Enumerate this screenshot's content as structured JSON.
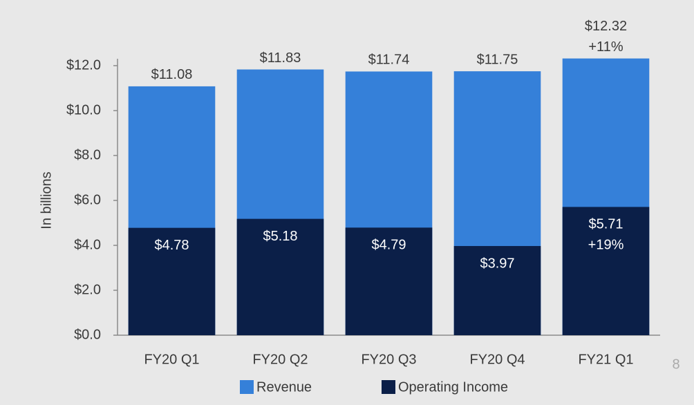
{
  "chart_data": {
    "type": "bar",
    "overlap": true,
    "y_label": "In billions",
    "categories": [
      "FY20 Q1",
      "FY20 Q2",
      "FY20 Q3",
      "FY20 Q4",
      "FY21 Q1"
    ],
    "series": [
      {
        "name": "Revenue",
        "color": "#3580d9",
        "values": [
          11.08,
          11.83,
          11.74,
          11.75,
          12.32
        ],
        "value_labels": [
          "$11.08",
          "$11.83",
          "$11.74",
          "$11.75",
          "$12.32"
        ],
        "growth_labels": [
          null,
          null,
          null,
          null,
          "+11%"
        ]
      },
      {
        "name": "Operating Income",
        "color": "#0b1f48",
        "values": [
          4.78,
          5.18,
          4.79,
          3.97,
          5.71
        ],
        "value_labels": [
          "$4.78",
          "$5.18",
          "$4.79",
          "$3.97",
          "$5.71"
        ],
        "growth_labels": [
          null,
          null,
          null,
          null,
          "+19%"
        ]
      }
    ],
    "ylim": [
      0,
      12
    ],
    "yticks": [
      {
        "value": 0,
        "label": "$0.0"
      },
      {
        "value": 2,
        "label": "$2.0"
      },
      {
        "value": 4,
        "label": "$4.0"
      },
      {
        "value": 6,
        "label": "$6.0"
      },
      {
        "value": 8,
        "label": "$8.0"
      },
      {
        "value": 10,
        "label": "$10.0"
      },
      {
        "value": 12,
        "label": "$12.0"
      }
    ],
    "page_number": "8"
  }
}
